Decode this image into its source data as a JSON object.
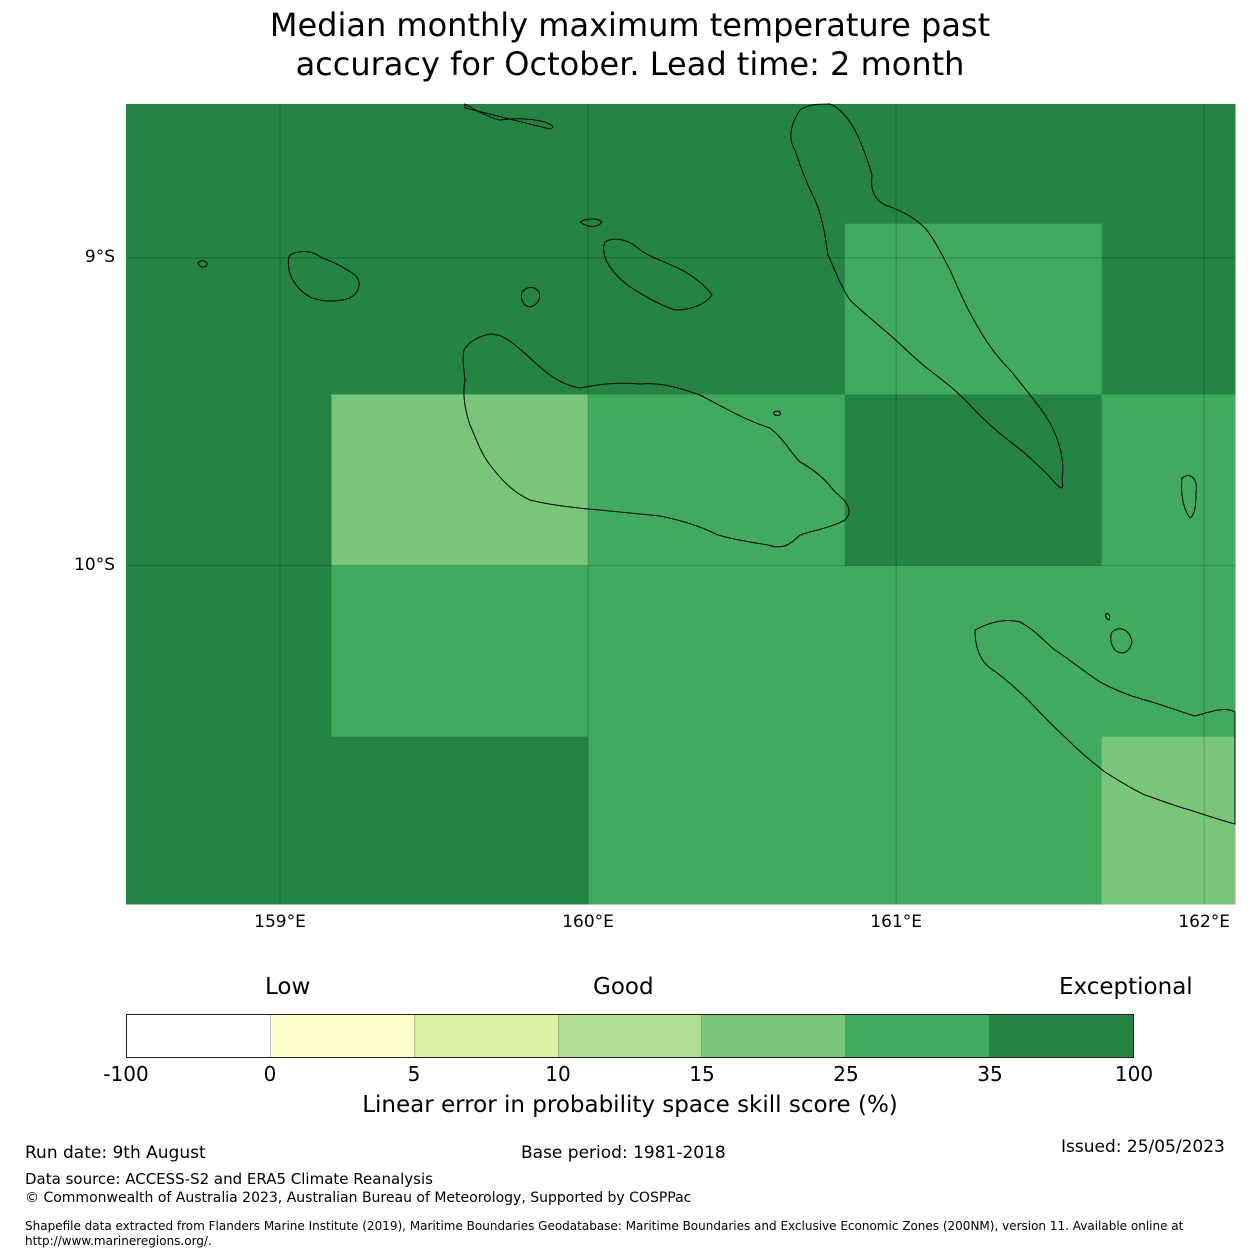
{
  "title": {
    "line1": "Median monthly maximum temperature past",
    "line2": "accuracy for October. Lead time: 2 month"
  },
  "map": {
    "extent": {
      "lon_min": 158.5,
      "lon_max": 162.1,
      "lat_min": -11.1,
      "lat_max": -8.5
    },
    "lon_ticks": [
      {
        "value": 159,
        "label": "159°E"
      },
      {
        "value": 160,
        "label": "160°E"
      },
      {
        "value": 161,
        "label": "161°E"
      },
      {
        "value": 162,
        "label": "162°E"
      }
    ],
    "lat_ticks": [
      {
        "value": -9,
        "label": "9°S"
      },
      {
        "value": -10,
        "label": "10°S"
      }
    ],
    "grid_cell_lon": [
      158.5,
      159.167,
      160.0,
      160.833,
      161.667,
      162.1
    ],
    "grid_cell_lat": [
      -8.5,
      -8.889,
      -9.444,
      -10.0,
      -10.556,
      -11.1
    ],
    "cell_categories": [
      [
        6,
        6,
        6,
        6,
        6
      ],
      [
        6,
        6,
        6,
        5,
        6
      ],
      [
        6,
        4,
        5,
        6,
        5
      ],
      [
        6,
        5,
        5,
        5,
        5
      ],
      [
        6,
        6,
        5,
        5,
        4
      ]
    ]
  },
  "legend": {
    "category_labels": {
      "low": "Low",
      "good": "Good",
      "exceptional": "Exceptional"
    },
    "colors": [
      "#ffffff",
      "#ffffcc",
      "#d9f0a3",
      "#addd8e",
      "#78c679",
      "#41ab5d",
      "#238443"
    ],
    "ticks": [
      "-100",
      "0",
      "5",
      "10",
      "15",
      "25",
      "35",
      "100"
    ],
    "label": "Linear error in probability space skill score (%)"
  },
  "footer": {
    "run_date": "Run date: 9th August",
    "base_period": "Base period: 1981-2018",
    "issued": "Issued: 25/05/2023",
    "data_source": "Data source: ACCESS-S2 and ERA5 Climate Reanalysis",
    "copyright": "© Commonwealth of Australia 2023, Australian Bureau of Meteorology, Supported by COSPPac",
    "shapefile": "Shapefile data extracted from Flanders Marine Institute (2019), Maritime Boundaries Geodatabase: Maritime Boundaries and Exclusive Economic Zones (200NM), version 11. Available online at http://www.marineregions.org/."
  }
}
